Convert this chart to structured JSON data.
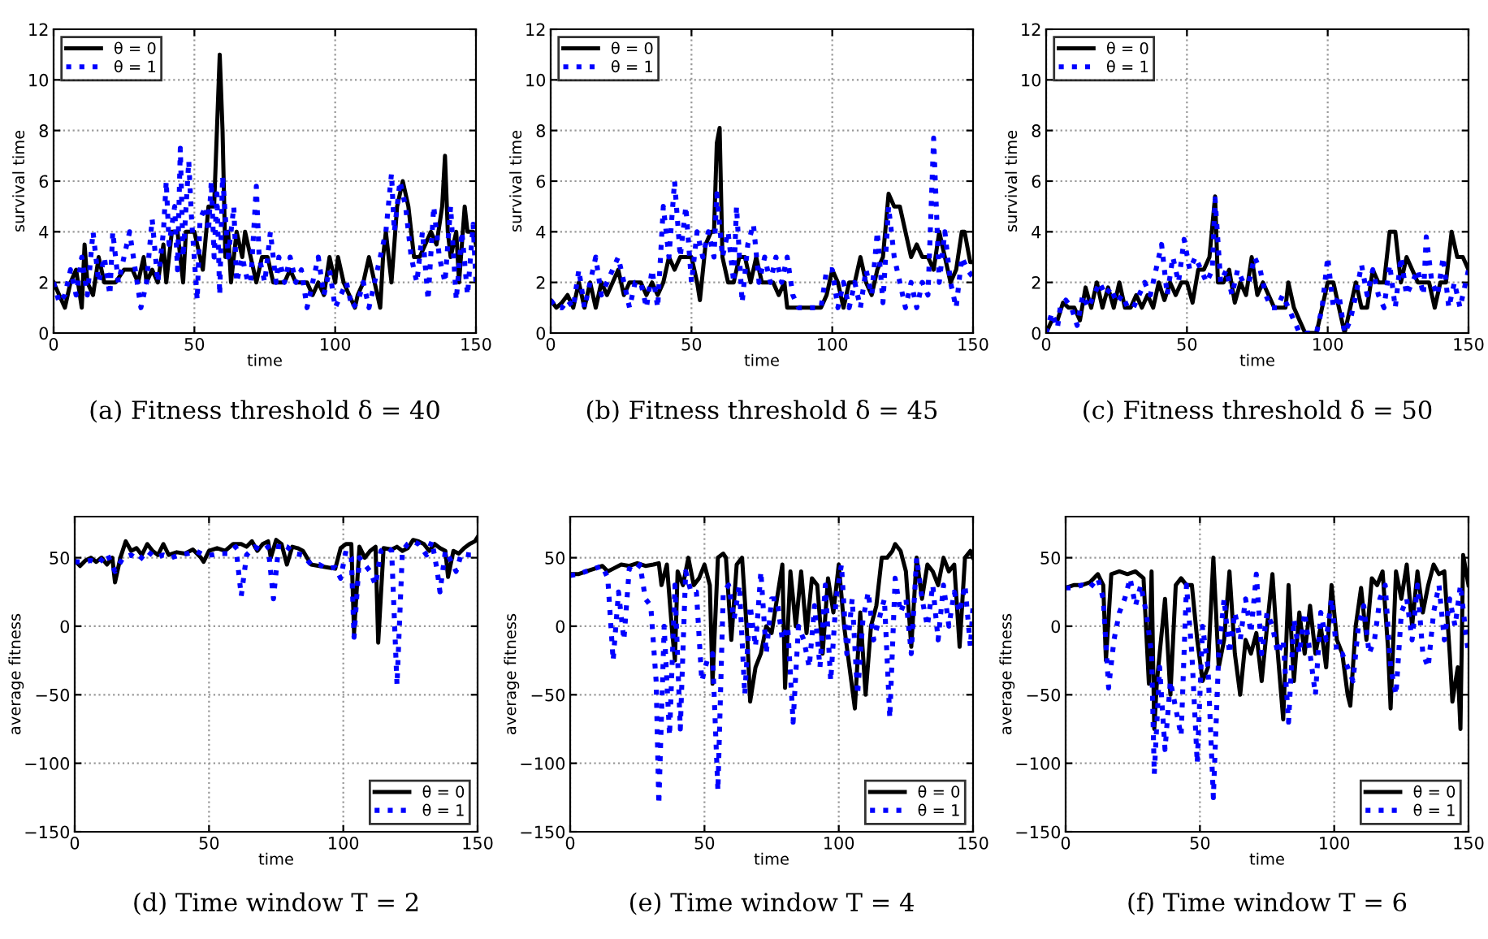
{
  "chart_data": [
    {
      "type": "line",
      "title": "(a) Fitness threshold δ = 40",
      "xlabel": "time",
      "ylabel": "survival time",
      "xlim": [
        0,
        150
      ],
      "ylim": [
        0,
        12
      ],
      "xticks": [
        0,
        50,
        100,
        150
      ],
      "yticks": [
        0,
        2,
        4,
        6,
        8,
        10,
        12
      ],
      "grid": true,
      "legend": "top left",
      "series": [
        {
          "name": "θ = 0",
          "color": "#000000",
          "line_style": "solid",
          "x": [
            0,
            2,
            4,
            6,
            8,
            10,
            11,
            12,
            14,
            16,
            18,
            20,
            22,
            25,
            28,
            30,
            32,
            33,
            35,
            37,
            39,
            40,
            42,
            44,
            46,
            47,
            50,
            52,
            53,
            55,
            57,
            59,
            60,
            61,
            62,
            63,
            65,
            67,
            68,
            70,
            72,
            74,
            76,
            78,
            80,
            82,
            84,
            86,
            88,
            90,
            92,
            94,
            96,
            98,
            100,
            101,
            103,
            105,
            107,
            108,
            110,
            112,
            114,
            116,
            117,
            118,
            120,
            122,
            124,
            126,
            128,
            130,
            132,
            134,
            136,
            138,
            139,
            140,
            141,
            143,
            144,
            146,
            147,
            149,
            150
          ],
          "values": [
            2,
            1.5,
            1,
            2,
            2.5,
            1,
            3.5,
            2,
            1.5,
            3,
            2,
            2,
            2,
            2.5,
            2.5,
            2,
            3,
            2,
            2.5,
            2,
            3.5,
            2,
            4,
            4,
            2,
            4,
            4,
            3,
            2.5,
            5,
            5,
            11,
            8,
            3,
            4,
            2,
            4,
            3,
            4,
            3,
            2,
            3,
            3,
            2,
            2,
            2,
            2.5,
            2,
            2,
            2,
            1.5,
            2,
            1.5,
            3,
            2,
            3,
            2,
            1.5,
            1,
            1.5,
            2,
            3,
            2,
            1,
            3,
            4,
            2,
            5,
            6,
            5,
            3,
            3,
            3.5,
            4,
            3.5,
            5,
            7,
            4,
            3,
            4,
            2,
            5,
            4,
            4,
            3.5
          ]
        },
        {
          "name": "θ = 1",
          "color": "#0000ff",
          "line_style": "dotted",
          "x": [
            0,
            2,
            4,
            6,
            8,
            10,
            12,
            14,
            16,
            18,
            20,
            21,
            23,
            25,
            27,
            29,
            31,
            33,
            35,
            37,
            39,
            40,
            41,
            43,
            44,
            45,
            46,
            48,
            49,
            51,
            52,
            54,
            55,
            56,
            57,
            58,
            59,
            60,
            62,
            64,
            65,
            67,
            69,
            70,
            72,
            73,
            75,
            77,
            79,
            80,
            82,
            84,
            86,
            88,
            90,
            92,
            94,
            96,
            98,
            100,
            102,
            104,
            106,
            108,
            110,
            112,
            114,
            116,
            118,
            120,
            121,
            123,
            125,
            127,
            129,
            131,
            133,
            135,
            137,
            139,
            141,
            143,
            145,
            147,
            149,
            150
          ],
          "values": [
            2,
            1.2,
            1.5,
            2.5,
            1.5,
            3,
            1.5,
            4,
            2,
            3,
            1.5,
            4,
            2,
            3,
            4,
            2.5,
            1,
            2,
            4.5,
            2,
            4,
            6,
            3.5,
            5,
            2.5,
            7.3,
            3,
            6.8,
            4.5,
            1.3,
            4.5,
            5,
            4,
            6,
            3,
            5.5,
            1.5,
            6.2,
            3,
            5,
            2,
            3,
            2,
            2,
            5.8,
            3,
            2,
            4,
            2,
            3,
            2,
            3,
            2,
            2.5,
            1,
            2,
            3,
            1.5,
            2.5,
            1,
            1.5,
            2,
            1,
            1.2,
            2,
            1,
            2,
            3,
            4,
            6.3,
            4,
            6,
            5,
            3,
            2,
            4,
            1.3,
            5,
            3,
            2,
            5,
            1.3,
            4,
            1.5,
            4.3,
            2
          ]
        }
      ]
    },
    {
      "type": "line",
      "title": "(b) Fitness threshold δ = 45",
      "xlabel": "time",
      "ylabel": "survival time",
      "xlim": [
        0,
        150
      ],
      "ylim": [
        0,
        12
      ],
      "xticks": [
        0,
        50,
        100,
        150
      ],
      "yticks": [
        0,
        2,
        4,
        6,
        8,
        10,
        12
      ],
      "grid": true,
      "legend": "top left",
      "series": [
        {
          "name": "θ = 0",
          "color": "#000000",
          "line_style": "solid",
          "x": [
            0,
            2,
            4,
            6,
            8,
            10,
            12,
            14,
            16,
            18,
            20,
            22,
            24,
            26,
            28,
            30,
            32,
            34,
            36,
            38,
            40,
            42,
            44,
            46,
            48,
            50,
            52,
            53,
            55,
            57,
            58,
            59,
            60,
            61,
            63,
            65,
            67,
            69,
            71,
            73,
            75,
            77,
            79,
            81,
            83,
            84,
            86,
            88,
            90,
            92,
            94,
            96,
            98,
            100,
            102,
            104,
            106,
            108,
            110,
            112,
            114,
            116,
            118,
            120,
            122,
            124,
            126,
            128,
            130,
            132,
            134,
            136,
            138,
            140,
            142,
            144,
            146,
            147,
            149,
            150
          ],
          "values": [
            1.3,
            1,
            1.2,
            1.5,
            1,
            2,
            1,
            2,
            1,
            2,
            1.5,
            2,
            2.5,
            1.5,
            2,
            2,
            2,
            1.5,
            2,
            1.5,
            2,
            3,
            2.5,
            3,
            3,
            3,
            2,
            1.3,
            3.5,
            4,
            4,
            7.5,
            8.1,
            3,
            2,
            2,
            3,
            3,
            2,
            3,
            2,
            2,
            2,
            1.5,
            2,
            1,
            1,
            1,
            1,
            1,
            1,
            1,
            1.5,
            2.5,
            2,
            1,
            2,
            2,
            3,
            2,
            1.5,
            2.5,
            3,
            5.5,
            5,
            5,
            4,
            3,
            3.5,
            3,
            3,
            2.5,
            4,
            3,
            2,
            2.5,
            4,
            4,
            2.8,
            2.8
          ]
        },
        {
          "name": "θ = 1",
          "color": "#0000ff",
          "line_style": "dotted",
          "x": [
            0,
            2,
            4,
            6,
            8,
            10,
            12,
            14,
            16,
            18,
            20,
            22,
            24,
            26,
            28,
            30,
            32,
            34,
            36,
            38,
            40,
            42,
            44,
            46,
            48,
            50,
            52,
            54,
            56,
            58,
            59,
            61,
            63,
            65,
            66,
            68,
            70,
            72,
            74,
            76,
            78,
            80,
            82,
            84,
            86,
            88,
            90,
            92,
            94,
            96,
            98,
            100,
            102,
            104,
            106,
            108,
            110,
            112,
            114,
            116,
            118,
            120,
            122,
            124,
            126,
            128,
            130,
            132,
            134,
            136,
            138,
            140,
            142,
            144,
            146,
            148,
            150
          ],
          "values": [
            1.3,
            1,
            1,
            1.3,
            1,
            2.5,
            1,
            2,
            3,
            1.5,
            2,
            2.5,
            3,
            2,
            1,
            2,
            2,
            1,
            2.5,
            1,
            5,
            3,
            6,
            3,
            5,
            2,
            4,
            3,
            4,
            3,
            5.5,
            3,
            4,
            2,
            5,
            1.2,
            3.5,
            4.3,
            2,
            3,
            2,
            3,
            2,
            3,
            1.5,
            1,
            1,
            1,
            1,
            1,
            2.5,
            2.5,
            1,
            2,
            1,
            2,
            1,
            2.5,
            1.5,
            4,
            1.2,
            5,
            3,
            2,
            1,
            2,
            1,
            2,
            1.5,
            7.7,
            2,
            4,
            2,
            1,
            3,
            2.5,
            2.2
          ]
        }
      ]
    },
    {
      "type": "line",
      "title": "(c) Fitness threshold δ = 50",
      "xlabel": "time",
      "ylabel": "survival time",
      "xlim": [
        0,
        150
      ],
      "ylim": [
        0,
        12
      ],
      "xticks": [
        0,
        50,
        100,
        150
      ],
      "yticks": [
        0,
        2,
        4,
        6,
        8,
        10,
        12
      ],
      "grid": true,
      "legend": "top left",
      "series": [
        {
          "name": "θ = 0",
          "color": "#000000",
          "line_style": "solid",
          "x": [
            0,
            2,
            4,
            6,
            8,
            10,
            12,
            14,
            16,
            18,
            20,
            22,
            24,
            26,
            28,
            30,
            32,
            34,
            36,
            38,
            40,
            42,
            44,
            46,
            48,
            50,
            52,
            54,
            56,
            58,
            60,
            61,
            63,
            65,
            67,
            69,
            71,
            73,
            75,
            77,
            79,
            81,
            83,
            85,
            86,
            88,
            90,
            92,
            94,
            96,
            98,
            100,
            102,
            104,
            106,
            108,
            110,
            112,
            114,
            116,
            118,
            120,
            122,
            124,
            126,
            128,
            130,
            132,
            134,
            136,
            138,
            140,
            142,
            144,
            146,
            148,
            150
          ],
          "values": [
            0,
            0.5,
            0.5,
            1.2,
            1,
            1,
            0.5,
            1.8,
            1,
            2,
            1,
            1.8,
            1,
            2,
            1,
            1,
            1.5,
            1,
            1.5,
            1,
            2,
            1.3,
            2,
            1.5,
            2,
            2,
            1.2,
            2.5,
            2.5,
            3,
            5.4,
            2,
            2,
            2.5,
            1.2,
            2,
            1.5,
            3,
            1.5,
            2,
            1.5,
            1,
            1,
            1,
            2,
            1,
            0.5,
            0,
            0,
            0,
            1,
            2,
            2,
            1,
            0,
            1,
            2,
            1,
            1,
            2.5,
            2,
            2,
            4,
            4,
            2,
            3,
            2.5,
            2,
            2,
            2,
            1,
            2,
            2,
            4,
            3,
            3,
            2.5
          ]
        },
        {
          "name": "θ = 1",
          "color": "#0000ff",
          "line_style": "dotted",
          "x": [
            0,
            2,
            4,
            5,
            7,
            9,
            11,
            13,
            15,
            17,
            19,
            21,
            23,
            25,
            27,
            29,
            31,
            33,
            35,
            37,
            39,
            41,
            43,
            45,
            47,
            49,
            51,
            53,
            55,
            57,
            59,
            60,
            62,
            64,
            66,
            68,
            70,
            72,
            74,
            76,
            78,
            80,
            82,
            84,
            86,
            88,
            90,
            92,
            94,
            96,
            98,
            100,
            102,
            104,
            106,
            108,
            110,
            112,
            114,
            116,
            118,
            120,
            122,
            124,
            126,
            128,
            130,
            132,
            134,
            135,
            137,
            139,
            141,
            143,
            145,
            147,
            149,
            150
          ],
          "values": [
            0,
            0.8,
            0.2,
            1,
            1.3,
            1,
            0.3,
            1.5,
            1,
            1.5,
            2,
            1.5,
            1.8,
            1.2,
            1.5,
            1,
            1,
            1.5,
            2,
            1.5,
            2.5,
            3.5,
            1.5,
            3,
            2,
            3.7,
            2.5,
            3,
            2.5,
            2,
            2.5,
            5.3,
            2,
            2.5,
            1.5,
            2.5,
            2,
            2,
            3,
            2.5,
            1.5,
            1,
            1,
            1.5,
            1,
            0.5,
            0,
            0,
            0,
            0,
            1,
            3,
            1,
            1.5,
            0,
            0.5,
            1.5,
            2.7,
            1.5,
            2.5,
            1.5,
            1,
            2.7,
            1,
            3,
            1.5,
            2,
            2.5,
            1.5,
            3.8,
            2,
            1.5,
            3,
            1,
            2,
            1,
            2,
            2.5
          ]
        }
      ]
    },
    {
      "type": "line",
      "title": "(d) Time window T = 2",
      "xlabel": "time",
      "ylabel": "average fitness",
      "xlim": [
        0,
        150
      ],
      "ylim": [
        -150,
        80
      ],
      "xticks": [
        0,
        50,
        100,
        150
      ],
      "yticks": [
        {
          "value": -150,
          "label": "−150"
        },
        {
          "value": -100,
          "label": "−100"
        },
        {
          "value": -50,
          "label": "−50"
        },
        0,
        50
      ],
      "grid": true,
      "legend": "bottom right",
      "series": [
        {
          "name": "θ = 0",
          "color": "#000000",
          "line_style": "solid",
          "x": [
            0,
            2,
            4,
            6,
            8,
            10,
            12,
            14,
            15,
            17,
            19,
            21,
            23,
            25,
            27,
            29,
            31,
            33,
            35,
            38,
            41,
            44,
            47,
            48,
            50,
            53,
            56,
            59,
            62,
            64,
            66,
            68,
            70,
            72,
            73,
            75,
            77,
            79,
            81,
            83,
            85,
            88,
            91,
            94,
            97,
            99,
            101,
            103,
            104,
            106,
            108,
            110,
            112,
            113,
            115,
            118,
            120,
            122,
            124,
            126,
            128,
            130,
            132,
            134,
            136,
            138,
            139,
            141,
            143,
            145,
            147,
            149,
            150
          ],
          "values": [
            48,
            44,
            48,
            50,
            47,
            50,
            45,
            50,
            32,
            50,
            62,
            55,
            57,
            52,
            60,
            55,
            52,
            60,
            52,
            54,
            53,
            56,
            50,
            47,
            55,
            57,
            55,
            60,
            60,
            58,
            62,
            55,
            60,
            62,
            50,
            63,
            60,
            45,
            58,
            57,
            55,
            45,
            44,
            43,
            42,
            57,
            60,
            60,
            -5,
            58,
            50,
            55,
            58,
            -12,
            57,
            56,
            58,
            55,
            57,
            63,
            62,
            60,
            55,
            60,
            57,
            55,
            36,
            55,
            53,
            57,
            60,
            62,
            65
          ]
        },
        {
          "name": "θ = 1",
          "color": "#0000ff",
          "line_style": "dotted",
          "x": [
            0,
            3,
            6,
            9,
            12,
            15,
            18,
            21,
            24,
            27,
            30,
            33,
            36,
            39,
            42,
            45,
            48,
            51,
            54,
            57,
            60,
            62,
            64,
            67,
            70,
            72,
            74,
            76,
            79,
            82,
            85,
            88,
            91,
            94,
            97,
            99,
            101,
            103,
            104,
            106,
            108,
            110,
            112,
            114,
            116,
            118,
            120,
            122,
            124,
            126,
            128,
            131,
            133,
            135,
            136,
            138,
            140,
            142,
            144,
            147,
            150
          ],
          "values": [
            47,
            47,
            48,
            46,
            53,
            40,
            50,
            52,
            48,
            55,
            50,
            52,
            50,
            52,
            53,
            55,
            52,
            52,
            53,
            53,
            58,
            22,
            52,
            58,
            55,
            58,
            20,
            60,
            58,
            53,
            52,
            45,
            45,
            42,
            43,
            35,
            55,
            50,
            -8,
            50,
            45,
            40,
            30,
            55,
            58,
            55,
            -43,
            55,
            60,
            62,
            60,
            52,
            62,
            40,
            25,
            55,
            48,
            40,
            53,
            52,
            52
          ]
        }
      ]
    },
    {
      "type": "line",
      "title": "(e) Time window T = 4",
      "xlabel": "time",
      "ylabel": "average fitness",
      "xlim": [
        0,
        150
      ],
      "ylim": [
        -150,
        80
      ],
      "xticks": [
        0,
        50,
        100,
        150
      ],
      "yticks": [
        {
          "value": -150,
          "label": "−150"
        },
        {
          "value": -100,
          "label": "−100"
        },
        {
          "value": -50,
          "label": "−50"
        },
        0,
        50
      ],
      "grid": true,
      "legend": "bottom right",
      "series": [
        {
          "name": "θ = 0",
          "color": "#000000",
          "line_style": "solid",
          "x": [
            0,
            3,
            6,
            9,
            12,
            14,
            16,
            19,
            22,
            25,
            28,
            31,
            33,
            34,
            36,
            38,
            39,
            40,
            42,
            44,
            46,
            48,
            50,
            52,
            53,
            55,
            57,
            58,
            60,
            62,
            64,
            66,
            67,
            69,
            71,
            73,
            75,
            77,
            79,
            80,
            82,
            84,
            86,
            88,
            90,
            92,
            94,
            96,
            98,
            100,
            102,
            104,
            106,
            108,
            110,
            112,
            114,
            116,
            118,
            120,
            121,
            123,
            125,
            127,
            129,
            131,
            133,
            135,
            137,
            139,
            141,
            143,
            145,
            147,
            149,
            150
          ],
          "values": [
            38,
            38,
            40,
            42,
            44,
            40,
            42,
            45,
            44,
            46,
            44,
            45,
            46,
            30,
            45,
            -5,
            -25,
            40,
            30,
            50,
            30,
            35,
            45,
            30,
            -42,
            50,
            53,
            50,
            -10,
            45,
            50,
            -10,
            -55,
            -30,
            -20,
            0,
            -5,
            20,
            45,
            -45,
            40,
            0,
            40,
            -5,
            35,
            30,
            -20,
            35,
            10,
            45,
            0,
            -30,
            -60,
            10,
            -50,
            0,
            15,
            50,
            50,
            55,
            60,
            55,
            40,
            -15,
            50,
            20,
            45,
            40,
            30,
            50,
            40,
            45,
            -15,
            50,
            55,
            50
          ]
        },
        {
          "name": "θ = 1",
          "color": "#0000ff",
          "line_style": "dotted",
          "x": [
            0,
            3,
            6,
            9,
            12,
            14,
            16,
            18,
            20,
            22,
            24,
            26,
            28,
            30,
            32,
            33,
            35,
            37,
            39,
            41,
            43,
            45,
            47,
            49,
            51,
            53,
            55,
            57,
            59,
            61,
            63,
            65,
            67,
            69,
            71,
            73,
            75,
            77,
            79,
            81,
            83,
            85,
            87,
            89,
            91,
            93,
            95,
            97,
            99,
            101,
            103,
            105,
            107,
            109,
            111,
            113,
            115,
            117,
            119,
            121,
            123,
            125,
            127,
            129,
            131,
            133,
            135,
            137,
            139,
            141,
            143,
            145,
            147,
            149,
            150
          ],
          "values": [
            37,
            38,
            40,
            42,
            44,
            35,
            -25,
            25,
            -10,
            42,
            40,
            45,
            20,
            15,
            -40,
            -130,
            0,
            -80,
            30,
            -75,
            40,
            25,
            25,
            -40,
            -25,
            -20,
            -120,
            25,
            30,
            5,
            30,
            -50,
            15,
            -15,
            40,
            -20,
            20,
            20,
            -10,
            0,
            -70,
            0,
            -10,
            -30,
            15,
            -30,
            30,
            -40,
            20,
            45,
            -20,
            20,
            -50,
            5,
            25,
            -10,
            5,
            20,
            -67,
            35,
            10,
            20,
            -20,
            50,
            20,
            0,
            30,
            -10,
            30,
            0,
            25,
            10,
            30,
            -15,
            15
          ]
        }
      ]
    },
    {
      "type": "line",
      "title": "(f) Time window T = 6",
      "xlabel": "time",
      "ylabel": "average fitness",
      "xlim": [
        0,
        150
      ],
      "ylim": [
        -150,
        80
      ],
      "xticks": [
        0,
        50,
        100,
        150
      ],
      "yticks": [
        {
          "value": -150,
          "label": "−150"
        },
        {
          "value": -100,
          "label": "−100"
        },
        {
          "value": -50,
          "label": "−50"
        },
        0,
        50
      ],
      "grid": true,
      "legend": "bottom right",
      "series": [
        {
          "name": "θ = 0",
          "color": "#000000",
          "line_style": "solid",
          "x": [
            0,
            3,
            6,
            9,
            12,
            14,
            15,
            17,
            20,
            23,
            26,
            29,
            31,
            32,
            33,
            34,
            35,
            37,
            39,
            41,
            43,
            45,
            47,
            49,
            51,
            53,
            55,
            57,
            59,
            61,
            63,
            65,
            67,
            69,
            71,
            73,
            75,
            77,
            79,
            81,
            83,
            85,
            87,
            89,
            91,
            93,
            95,
            97,
            99,
            101,
            103,
            105,
            106,
            108,
            110,
            112,
            114,
            116,
            118,
            120,
            121,
            123,
            125,
            127,
            129,
            131,
            133,
            135,
            137,
            139,
            141,
            143,
            144,
            146,
            147,
            148,
            150
          ],
          "values": [
            28,
            30,
            30,
            32,
            38,
            30,
            -25,
            38,
            40,
            38,
            40,
            35,
            -42,
            40,
            -75,
            -40,
            -20,
            20,
            -50,
            30,
            35,
            30,
            30,
            -10,
            -40,
            -30,
            50,
            -30,
            -10,
            40,
            -20,
            -50,
            -10,
            -20,
            -5,
            -40,
            0,
            38,
            -20,
            -68,
            30,
            -40,
            10,
            -20,
            15,
            -20,
            0,
            -30,
            30,
            -10,
            -20,
            -50,
            -58,
            0,
            28,
            -10,
            35,
            30,
            40,
            -15,
            -60,
            40,
            20,
            45,
            0,
            40,
            10,
            30,
            45,
            38,
            40,
            -20,
            -55,
            -30,
            -75,
            52,
            30
          ]
        },
        {
          "name": "θ = 1",
          "color": "#0000ff",
          "line_style": "dotted",
          "x": [
            0,
            3,
            6,
            9,
            12,
            14,
            16,
            18,
            20,
            22,
            24,
            26,
            28,
            30,
            32,
            33,
            35,
            37,
            39,
            41,
            43,
            45,
            47,
            49,
            51,
            53,
            55,
            57,
            59,
            61,
            63,
            65,
            67,
            69,
            71,
            73,
            75,
            77,
            79,
            81,
            83,
            85,
            87,
            89,
            91,
            93,
            95,
            97,
            99,
            101,
            103,
            105,
            107,
            109,
            111,
            113,
            115,
            117,
            119,
            121,
            123,
            125,
            127,
            129,
            131,
            133,
            135,
            137,
            139,
            141,
            143,
            145,
            147,
            149,
            150
          ],
          "values": [
            28,
            28,
            30,
            28,
            35,
            20,
            -45,
            -10,
            10,
            20,
            35,
            15,
            30,
            10,
            -20,
            -108,
            -30,
            -90,
            -40,
            -60,
            -80,
            30,
            -20,
            -100,
            0,
            -30,
            -125,
            -20,
            20,
            -20,
            10,
            -10,
            20,
            -5,
            38,
            -20,
            10,
            0,
            -20,
            -10,
            -70,
            5,
            -20,
            10,
            -20,
            -50,
            10,
            -10,
            20,
            -20,
            -20,
            -30,
            -40,
            0,
            15,
            -20,
            -10,
            20,
            30,
            -30,
            -50,
            10,
            20,
            -10,
            30,
            -20,
            -30,
            10,
            30,
            -10,
            20,
            0,
            30,
            -5,
            -20
          ]
        }
      ]
    }
  ]
}
